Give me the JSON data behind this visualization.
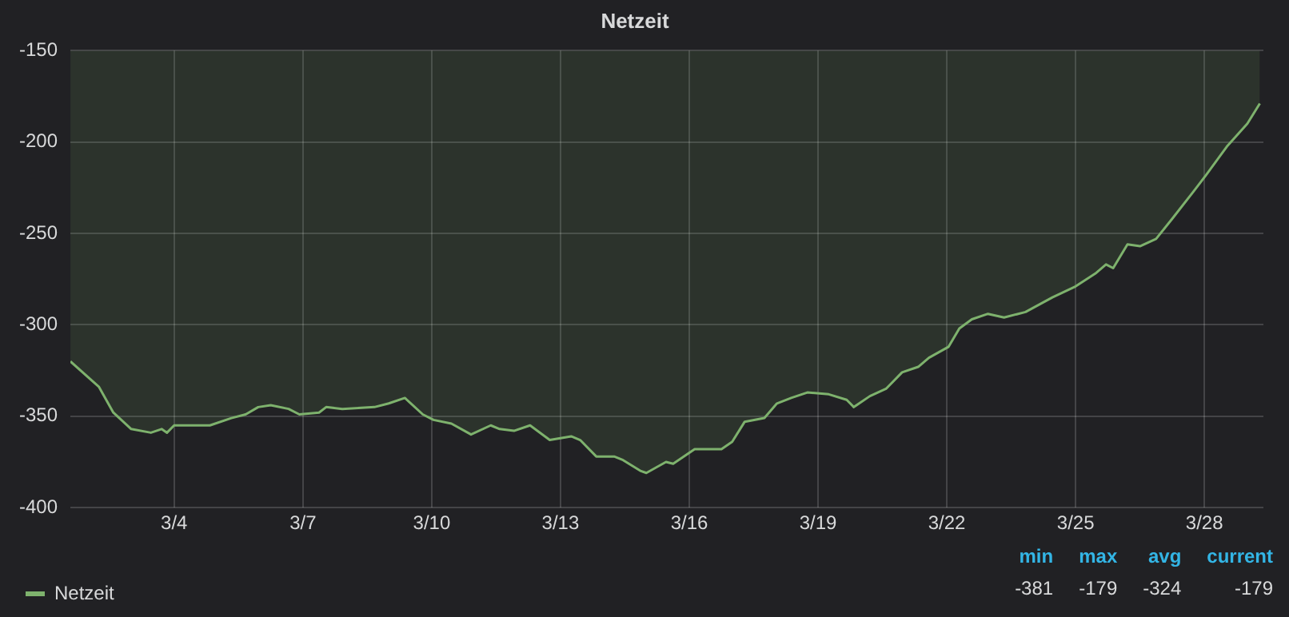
{
  "chart_data": {
    "type": "area",
    "title": "Netzeit",
    "x": [
      "--03-01T14:00",
      "--03-02T06:00",
      "--03-02T14:00",
      "--03-03T00:00",
      "--03-03T11:00",
      "--03-03T17:00",
      "--03-03T20:00",
      "--03-04T00:00",
      "--03-04T20:00",
      "--03-05T08:00",
      "--03-05T16:00",
      "--03-05T23:00",
      "--03-06T06:00",
      "--03-06T16:00",
      "--03-06T22:00",
      "--03-07T09:00",
      "--03-07T13:00",
      "--03-07T22:00",
      "--03-08T16:00",
      "--03-09T00:00",
      "--03-09T09:00",
      "--03-09T19:00",
      "--03-10T01:00",
      "--03-10T11:00",
      "--03-10T22:00",
      "--03-11T09:00",
      "--03-11T14:00",
      "--03-11T22:00",
      "--03-12T07:00",
      "--03-12T18:00",
      "--03-13T06:00",
      "--03-13T11:00",
      "--03-13T20:00",
      "--03-14T06:00",
      "--03-14T11:00",
      "--03-14T21:00",
      "--03-15T00:00",
      "--03-15T11:00",
      "--03-15T15:00",
      "--03-16T03:00",
      "--03-16T18:00",
      "--03-17T00:00",
      "--03-17T07:00",
      "--03-17T18:00",
      "--03-18T01:00",
      "--03-18T09:00",
      "--03-18T18:00",
      "--03-19T06:00",
      "--03-19T16:00",
      "--03-19T20:00",
      "--03-20T05:00",
      "--03-20T14:00",
      "--03-20T23:00",
      "--03-21T08:00",
      "--03-21T14:00",
      "--03-22T01:00",
      "--03-22T07:00",
      "--03-22T14:00",
      "--03-22T23:00",
      "--03-23T08:00",
      "--03-23T20:00",
      "--03-24T11:00",
      "--03-25T00:00",
      "--03-25T11:00",
      "--03-25T17:00",
      "--03-25T21:00",
      "--03-26T05:00",
      "--03-26T12:00",
      "--03-26T21:00",
      "--03-27T06:00",
      "--03-27T18:00",
      "--03-28T01:00",
      "--03-28T13:00",
      "--03-29T00:00",
      "--03-29T07:00"
    ],
    "series": [
      {
        "name": "Netzeit",
        "color": "#7eb26d",
        "values": [
          -320,
          -334,
          -348,
          -357,
          -359,
          -357,
          -359,
          -355,
          -355,
          -351,
          -349,
          -345,
          -344,
          -346,
          -349,
          -348,
          -345,
          -346,
          -345,
          -343,
          -340,
          -349,
          -352,
          -354,
          -360,
          -355,
          -357,
          -358,
          -355,
          -363,
          -361,
          -363,
          -372,
          -372,
          -374,
          -380,
          -381,
          -375,
          -376,
          -368,
          -368,
          -364,
          -353,
          -351,
          -343,
          -340,
          -337,
          -338,
          -341,
          -345,
          -339,
          -335,
          -326,
          -323,
          -318,
          -312,
          -302,
          -297,
          -294,
          -296,
          -293,
          -285,
          -279,
          -272,
          -267,
          -269,
          -256,
          -257,
          -253,
          -242,
          -227,
          -218,
          -202,
          -190,
          -179
        ]
      }
    ],
    "xlim": [
      "--03-01T14:00",
      "--03-29T09:00"
    ],
    "xticks": [
      {
        "value": "--03-04",
        "label": "3/4"
      },
      {
        "value": "--03-07",
        "label": "3/7"
      },
      {
        "value": "--03-10",
        "label": "3/10"
      },
      {
        "value": "--03-13",
        "label": "3/13"
      },
      {
        "value": "--03-16",
        "label": "3/16"
      },
      {
        "value": "--03-19",
        "label": "3/19"
      },
      {
        "value": "--03-22",
        "label": "3/22"
      },
      {
        "value": "--03-25",
        "label": "3/25"
      },
      {
        "value": "--03-28",
        "label": "3/28"
      }
    ],
    "ylim": [
      -400,
      -150
    ],
    "yticks": [
      -400,
      -350,
      -300,
      -250,
      -200,
      -150
    ],
    "grid": true,
    "legend": "bottom",
    "line_style": "solid",
    "marker": "none",
    "annotations": [
      "min",
      "max",
      "avg",
      "current",
      "-381",
      "-179",
      "-324",
      "-179"
    ]
  }
}
